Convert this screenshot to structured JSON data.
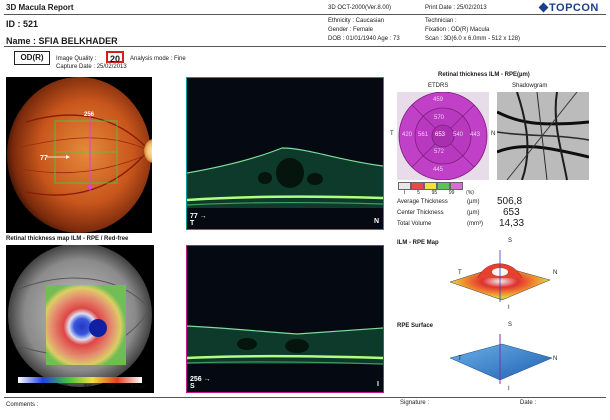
{
  "header": {
    "report_title": "3D Macula Report",
    "version": "3D OCT-2000(Ver.8.00)",
    "print_date": "Print Date : 25/02/2013",
    "brand": "TOPCON",
    "id": "ID : 521",
    "name": "Name : SFIA BELKHADER",
    "ethnicity": "Ethnicity : Caucasian",
    "gender": "Gender : Female",
    "dob_age": "DOB : 01/01/1940    Age : 73",
    "technician": "Technician :",
    "fixation": "Fixation : OD(R) Macula",
    "scan": "Scan : 3D(6.0 x 6.0mm - 512 x 128)"
  },
  "exam": {
    "eye": "OD(R)",
    "image_quality_label": "Image Quality :",
    "image_quality_value": "20",
    "analysis_mode": "Analysis mode : Fine",
    "capture_date": "Capture Date : 25/02/2013"
  },
  "fundus": {
    "marker_top": "256",
    "marker_left": "77"
  },
  "bscan_top": {
    "left_value": "77",
    "left_dir": "T",
    "right_dir": "N"
  },
  "bscan_bottom": {
    "left_value": "256",
    "left_dir": "S",
    "right_dir": "I"
  },
  "thickness_map_small": {
    "title": "Retinal thickness map ILM - RPE / Red-free",
    "scale_ticks": [
      "0",
      "100",
      "200",
      "300",
      "400",
      "500µm"
    ]
  },
  "etdrs": {
    "section_title": "Retinal thickness ILM - RPE(µm)",
    "etdrs_label": "ETDRS",
    "shadowgram_label": "Shadowgram",
    "values": {
      "top": "459",
      "sup_inner": "570",
      "temp_outer": "420",
      "temp_inner": "561",
      "center": "653",
      "nasal_inner": "540",
      "nasal_outer": "443",
      "inf_inner": "572",
      "bottom": "445"
    },
    "dir_t": "T",
    "dir_n": "N",
    "legend_ticks": [
      "I",
      "5",
      "95",
      "99",
      "(%)"
    ],
    "legend_colors": [
      "#e8e8e8",
      "#e84a4a",
      "#f0e040",
      "#60c060",
      "#d070d0"
    ]
  },
  "measurements": [
    {
      "label": "Average Thickness",
      "unit": "(µm)",
      "value": "506,8"
    },
    {
      "label": "Center Thickness",
      "unit": "(µm)",
      "value": "653"
    },
    {
      "label": "Total Volume",
      "unit": "(mm³)",
      "value": "14,33"
    }
  ],
  "ilm_rpe_map": {
    "title": "ILM - RPE Map",
    "s": "S",
    "t": "T",
    "n": "N",
    "i": "I"
  },
  "rpe_surface": {
    "title": "RPE Surface",
    "s": "S",
    "t": "T",
    "n": "N",
    "i": "I"
  },
  "footer": {
    "comments": "Comments :",
    "signature": "Signature :",
    "date": "Date :"
  },
  "colors": {
    "fundus_orange": "#d2691e",
    "scan_frame_top": "#00a090",
    "scan_frame_bottom": "#c01890",
    "etdrs_magenta": "#c040c8",
    "quality_box": "#d02020"
  }
}
